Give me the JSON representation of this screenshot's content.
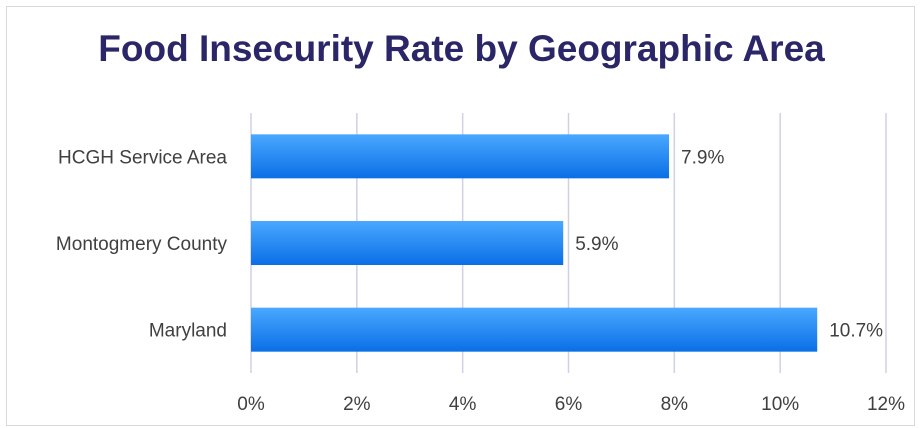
{
  "chart_data": {
    "type": "bar",
    "orientation": "horizontal",
    "title": "Food Insecurity Rate by Geographic Area",
    "categories": [
      "HCGH Service Area",
      "Montogmery County",
      "Maryland"
    ],
    "values": [
      7.9,
      5.9,
      10.7
    ],
    "data_labels": [
      "7.9%",
      "5.9%",
      "10.7%"
    ],
    "xlim": [
      0,
      12
    ],
    "x_ticks": [
      0,
      2,
      4,
      6,
      8,
      10,
      12
    ],
    "x_tick_labels": [
      "0%",
      "2%",
      "4%",
      "6%",
      "8%",
      "10%",
      "12%"
    ],
    "grid": "vertical",
    "legend": "none",
    "colors": {
      "bar_top": "#4aa8ff",
      "bar_bottom": "#0a6fe6",
      "title": "#2a2667"
    }
  }
}
